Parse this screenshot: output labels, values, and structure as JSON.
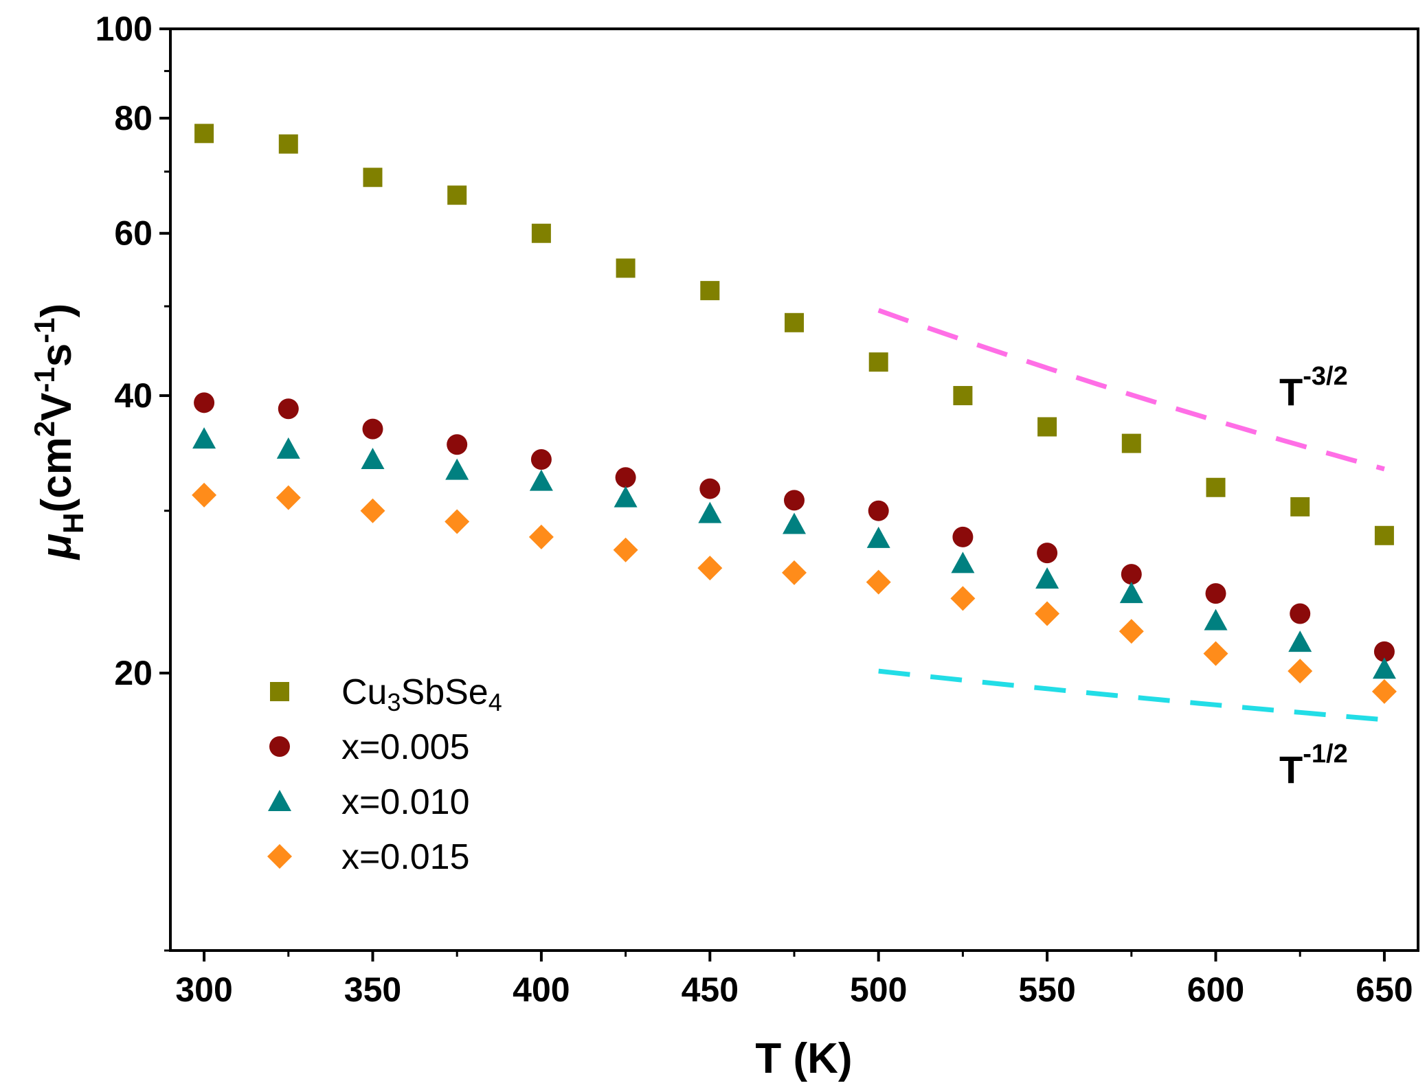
{
  "chart_data": {
    "type": "scatter",
    "title": "",
    "xlabel": "T (K)",
    "ylabel": {
      "symbol": "μ",
      "sub": "H",
      "unit_open": "(cm",
      "sup1": "2",
      "mid1": "V",
      "sup2": "-1",
      "mid2": "s",
      "sup3": "-1",
      "unit_close": ")"
    },
    "x_scale": "linear",
    "y_scale": "log",
    "xlim": [
      290,
      660
    ],
    "ylim": [
      10,
      100
    ],
    "x_ticks": [
      300,
      350,
      400,
      450,
      500,
      550,
      600,
      650
    ],
    "x_tick_labels": [
      "300",
      "350",
      "400",
      "450",
      "500",
      "550",
      "600",
      "650"
    ],
    "y_ticks": [
      20,
      40,
      60,
      80,
      100
    ],
    "y_tick_labels": [
      "20",
      "40",
      "60",
      "80",
      "100"
    ],
    "y_minor_ticks": [
      10,
      30,
      50,
      70,
      90
    ],
    "x": [
      300,
      325,
      350,
      375,
      400,
      425,
      450,
      475,
      500,
      525,
      550,
      575,
      600,
      625,
      650
    ],
    "series": [
      {
        "name": "Cu3SbSe4",
        "label_parts": [
          {
            "t": "Cu",
            "sub": false
          },
          {
            "t": "3",
            "sub": true
          },
          {
            "t": "SbSe",
            "sub": false
          },
          {
            "t": "4",
            "sub": true
          }
        ],
        "marker": "square",
        "color": "#808000",
        "values": [
          77.0,
          75.0,
          69.0,
          66.0,
          60.0,
          55.0,
          52.0,
          48.0,
          43.5,
          40.0,
          37.0,
          35.5,
          31.8,
          30.3,
          28.2
        ]
      },
      {
        "name": "x=0.005",
        "label_parts": [
          {
            "t": "x=0.005",
            "sub": false
          }
        ],
        "marker": "circle",
        "color": "#8b0a0a",
        "values": [
          39.3,
          38.7,
          36.8,
          35.4,
          34.1,
          32.6,
          31.7,
          30.8,
          30.0,
          28.1,
          27.0,
          25.6,
          24.4,
          23.2,
          21.1
        ]
      },
      {
        "name": "x=0.010",
        "label_parts": [
          {
            "t": "x=0.010",
            "sub": false
          }
        ],
        "marker": "triangle",
        "color": "#008080",
        "values": [
          35.9,
          35.0,
          34.1,
          33.2,
          32.3,
          31.0,
          29.8,
          29.0,
          28.0,
          26.3,
          25.3,
          24.4,
          22.8,
          21.6,
          20.2
        ]
      },
      {
        "name": "x=0.015",
        "label_parts": [
          {
            "t": "x=0.015",
            "sub": false
          }
        ],
        "marker": "diamond",
        "color": "#ff8c1a",
        "values": [
          31.2,
          31.0,
          30.0,
          29.2,
          28.1,
          27.2,
          26.0,
          25.7,
          25.1,
          24.1,
          23.2,
          22.2,
          21.0,
          20.1,
          19.1
        ]
      }
    ],
    "reference_lines": [
      {
        "label_base": "T",
        "label_exp": "-3/2",
        "color": "#ff6ee6",
        "x": [
          500,
          650
        ],
        "y": [
          49.5,
          33.3
        ]
      },
      {
        "label_base": "T",
        "label_exp": "-1/2",
        "color": "#22dde6",
        "x": [
          500,
          650
        ],
        "y": [
          20.1,
          17.8
        ]
      }
    ],
    "legend_position": "bottom-left"
  }
}
